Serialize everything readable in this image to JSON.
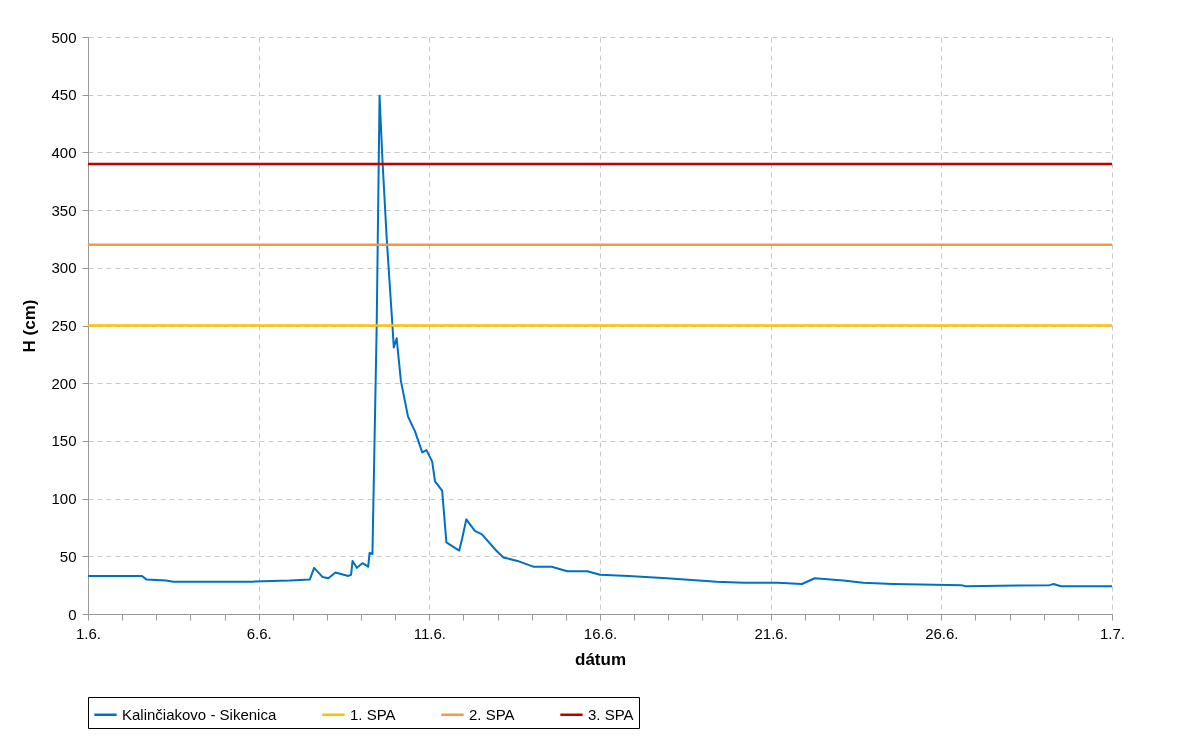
{
  "chart_data": {
    "type": "line",
    "xlabel": "dátum",
    "ylabel": "H (cm)",
    "legend": "bottom",
    "grid": true,
    "line_style": "solid",
    "marker": "none",
    "xlim": [
      "--06-01",
      "--07-01"
    ],
    "ylim": [
      0,
      500
    ],
    "yticks": [
      0,
      50,
      100,
      150,
      200,
      250,
      300,
      350,
      400,
      450,
      500
    ],
    "xticks": [
      {
        "value": "--06-01",
        "label": "1.6."
      },
      {
        "value": "--06-02",
        "label": null
      },
      {
        "value": "--06-03",
        "label": null
      },
      {
        "value": "--06-04",
        "label": null
      },
      {
        "value": "--06-05",
        "label": null
      },
      {
        "value": "--06-06",
        "label": "6.6."
      },
      {
        "value": "--06-07",
        "label": null
      },
      {
        "value": "--06-08",
        "label": null
      },
      {
        "value": "--06-09",
        "label": null
      },
      {
        "value": "--06-10",
        "label": null
      },
      {
        "value": "--06-11",
        "label": "11.6."
      },
      {
        "value": "--06-12",
        "label": null
      },
      {
        "value": "--06-13",
        "label": null
      },
      {
        "value": "--06-14",
        "label": null
      },
      {
        "value": "--06-15",
        "label": null
      },
      {
        "value": "--06-16",
        "label": "16.6."
      },
      {
        "value": "--06-17",
        "label": null
      },
      {
        "value": "--06-18",
        "label": null
      },
      {
        "value": "--06-19",
        "label": null
      },
      {
        "value": "--06-20",
        "label": null
      },
      {
        "value": "--06-21",
        "label": "21.6."
      },
      {
        "value": "--06-22",
        "label": null
      },
      {
        "value": "--06-23",
        "label": null
      },
      {
        "value": "--06-24",
        "label": null
      },
      {
        "value": "--06-25",
        "label": null
      },
      {
        "value": "--06-26",
        "label": "26.6."
      },
      {
        "value": "--06-27",
        "label": null
      },
      {
        "value": "--06-28",
        "label": null
      },
      {
        "value": "--06-29",
        "label": null
      },
      {
        "value": "--06-30",
        "label": null
      },
      {
        "value": "--07-01",
        "label": "1.7."
      }
    ],
    "series": [
      {
        "name": "Kalinčiakovo - Sikenica",
        "color": "#0070c0",
        "x": [
          "--06-01",
          "--06-02T14:00",
          "--06-02T17:00",
          "--06-03T07:00",
          "--06-03T12:00",
          "--06-05T19:00",
          "--06-06T22:00",
          "--06-07T12:00",
          "--06-07T15:00",
          "--06-07T21:00",
          "--06-08T01:00",
          "--06-08T06:00",
          "--06-08T15:00",
          "--06-08T17:00",
          "--06-08T18:00",
          "--06-08T21:00",
          "--06-09T01:00",
          "--06-09T05:00",
          "--06-09T06:00",
          "--06-09T08:00",
          "--06-09T11:00",
          "--06-09T13:00",
          "--06-09T15:00",
          "--06-09T18:00",
          "--06-09T19:00",
          "--06-09T22:00",
          "--06-09T23:00",
          "--06-10T01:00",
          "--06-10T04:00",
          "--06-10T09:00",
          "--06-10T14:00",
          "--06-10T19:00",
          "--06-10T22:00",
          "--06-11T02:00",
          "--06-11T04:00",
          "--06-11T09:00",
          "--06-11T12:00",
          "--06-11T21:00",
          "--06-11T23:00",
          "--06-12T02:00",
          "--06-12T08:00",
          "--06-12T13:00",
          "--06-12T23:00",
          "--06-13T04:00",
          "--06-13T14:00",
          "--06-14T01:00",
          "--06-14T14:00",
          "--06-15T01:00",
          "--06-15T15:00",
          "--06-16",
          "--06-16T20:00",
          "--06-17T23:00",
          "--06-19T10:00",
          "--06-20T05:00",
          "--06-21T05:00",
          "--06-21T22:00",
          "--06-22T07:00",
          "--06-23T03:00",
          "--06-23T17:00",
          "--06-24T14:00",
          "--06-26T14:00",
          "--06-26T17:00",
          "--06-29T04:00",
          "--06-29T07:00",
          "--06-29T12:00",
          "--07-01"
        ],
        "values": [
          33,
          33,
          30,
          29,
          28,
          28,
          29,
          30,
          40,
          32,
          31,
          36,
          33,
          34,
          46,
          40,
          44,
          41,
          53,
          52,
          251,
          449,
          394,
          326,
          307,
          251,
          231,
          239,
          202,
          171,
          158,
          140,
          142,
          132,
          115,
          107,
          62,
          55,
          65,
          82,
          72,
          69,
          55,
          49,
          46,
          41,
          41,
          37,
          37,
          34,
          33,
          31,
          28,
          27,
          27,
          26,
          31,
          29,
          27,
          26,
          25,
          24,
          25,
          26,
          24,
          24
        ]
      }
    ],
    "ref_lines": [
      {
        "axis": "y",
        "value": 250,
        "label": "1. SPA",
        "color": "#ffc000"
      },
      {
        "axis": "y",
        "value": 320,
        "label": "2. SPA",
        "color": "#f79646"
      },
      {
        "axis": "y",
        "value": 390,
        "label": "3. SPA",
        "color": "#c00000"
      }
    ]
  }
}
